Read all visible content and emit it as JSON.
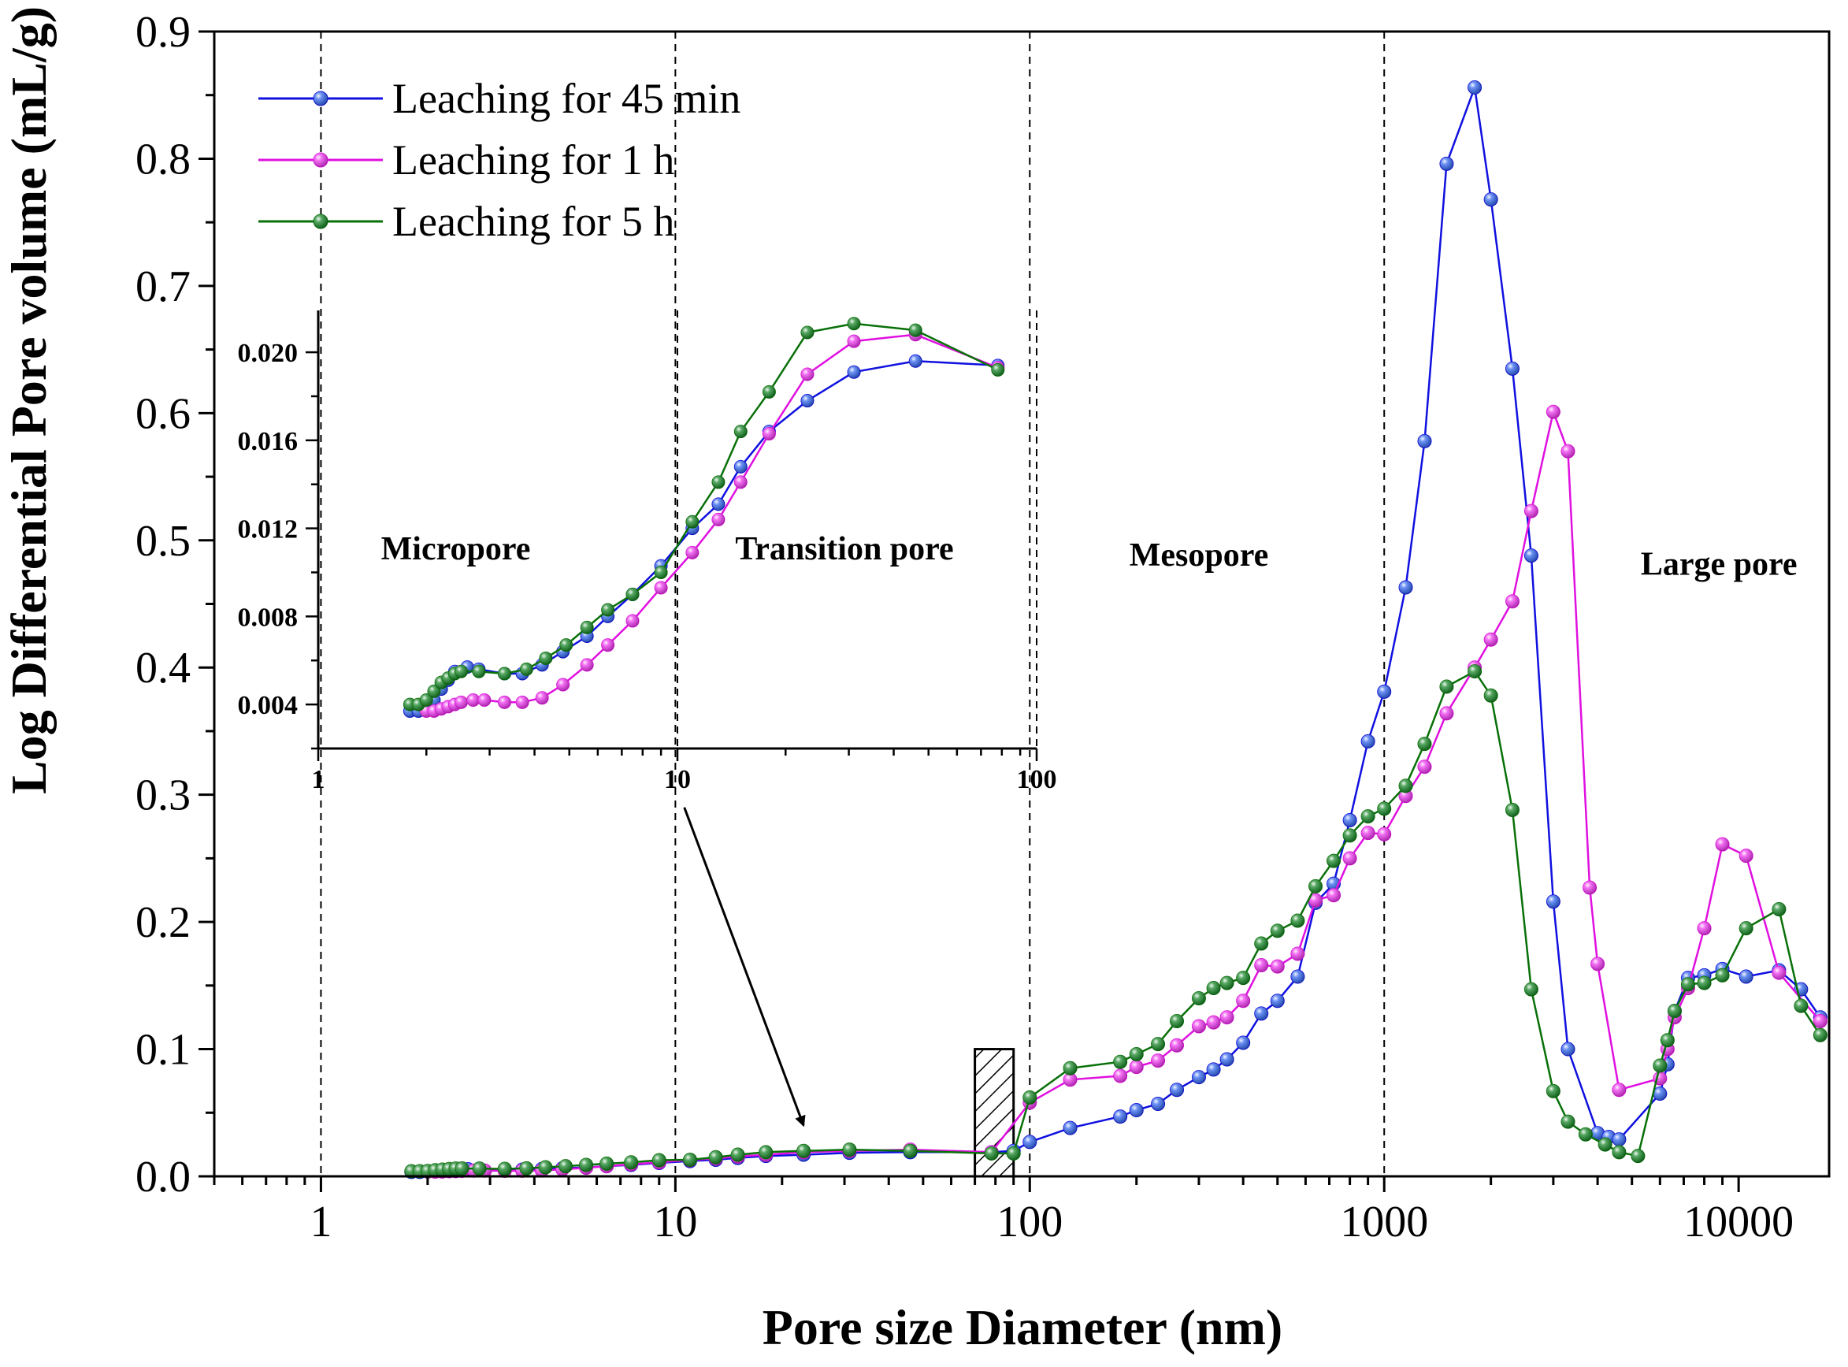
{
  "chart_data": {
    "type": "line",
    "xscale": "log",
    "xlabel": "Pore size Diameter (nm)",
    "ylabel": "Log Differential Pore volume (mL/g)",
    "xlim": [
      0.5,
      18000
    ],
    "ylim": [
      0,
      0.9
    ],
    "x_ticks": [
      {
        "value": 1,
        "label": "1"
      },
      {
        "value": 10,
        "label": "10"
      },
      {
        "value": 100,
        "label": "100"
      },
      {
        "value": 1000,
        "label": "1000"
      },
      {
        "value": 10000,
        "label": "10000"
      }
    ],
    "y_ticks": [
      {
        "value": 0.0,
        "label": "0.0"
      },
      {
        "value": 0.1,
        "label": "0.1"
      },
      {
        "value": 0.2,
        "label": "0.2"
      },
      {
        "value": 0.3,
        "label": "0.3"
      },
      {
        "value": 0.4,
        "label": "0.4"
      },
      {
        "value": 0.5,
        "label": "0.5"
      },
      {
        "value": 0.6,
        "label": "0.6"
      },
      {
        "value": 0.7,
        "label": "0.7"
      },
      {
        "value": 0.8,
        "label": "0.8"
      },
      {
        "value": 0.9,
        "label": "0.9"
      }
    ],
    "boundaries": [
      1,
      10,
      100,
      1000
    ],
    "regions": [
      {
        "label": "Micropore",
        "x": 2.4,
        "y": 0.485
      },
      {
        "label": "Transition pore",
        "x": 30,
        "y": 0.485
      },
      {
        "label": "Mesopore",
        "x": 300,
        "y": 0.48
      },
      {
        "label": "Large pore",
        "x": 8800,
        "y": 0.473
      }
    ],
    "highlight_box": {
      "x_range": [
        70,
        90
      ],
      "y_range": [
        0,
        0.1
      ]
    },
    "arrow": {
      "from": [
        10.6,
        0.29
      ],
      "to": [
        23,
        0.04
      ]
    },
    "legend": {
      "position": "top-left"
    },
    "series": [
      {
        "name": "Leaching for 45 min",
        "color": "#1010e0",
        "fill": "#3a6cf0",
        "x": [
          1.8,
          1.9,
          2.0,
          2.1,
          2.2,
          2.3,
          2.4,
          2.6,
          2.8,
          3.3,
          3.7,
          4.2,
          4.8,
          5.6,
          6.4,
          7.5,
          9.0,
          11,
          13,
          15,
          18,
          23,
          31,
          46,
          78,
          90,
          100,
          130,
          180,
          200,
          230,
          260,
          300,
          330,
          360,
          400,
          450,
          500,
          570,
          640,
          720,
          800,
          900,
          1000,
          1150,
          1300,
          1500,
          1800,
          2000,
          2300,
          2600,
          3000,
          3300,
          4000,
          4300,
          4600,
          6000,
          6300,
          6600,
          7200,
          8000,
          9000,
          10500,
          13000,
          15000,
          17000
        ],
        "y": [
          0.0035,
          0.0035,
          0.0038,
          0.0042,
          0.0047,
          0.0051,
          0.0055,
          0.0056,
          0.0055,
          0.0053,
          0.0053,
          0.0057,
          0.0063,
          0.007,
          0.008,
          0.009,
          0.0105,
          0.012,
          0.013,
          0.0145,
          0.016,
          0.017,
          0.0185,
          0.019,
          0.019,
          0.02,
          0.027,
          0.038,
          0.047,
          0.052,
          0.057,
          0.068,
          0.078,
          0.084,
          0.092,
          0.105,
          0.128,
          0.138,
          0.157,
          0.215,
          0.23,
          0.28,
          0.342,
          0.381,
          0.463,
          0.578,
          0.796,
          0.856,
          0.768,
          0.635,
          0.488,
          0.216,
          0.1,
          0.034,
          0.031,
          0.029,
          0.065,
          0.088,
          0.13,
          0.156,
          0.158,
          0.163,
          0.157,
          0.162,
          0.147,
          0.125
        ]
      },
      {
        "name": "Leaching for 1 h",
        "color": "#e010e0",
        "fill": "#f040f0",
        "x": [
          2.0,
          2.1,
          2.2,
          2.3,
          2.4,
          2.5,
          2.7,
          2.9,
          3.3,
          3.7,
          4.2,
          4.8,
          5.6,
          6.4,
          7.5,
          9.0,
          11,
          13,
          15,
          18,
          23,
          31,
          46,
          78,
          100,
          130,
          180,
          200,
          230,
          260,
          300,
          330,
          360,
          400,
          450,
          500,
          570,
          640,
          720,
          800,
          900,
          1000,
          1150,
          1300,
          1500,
          1800,
          2000,
          2300,
          2600,
          3000,
          3300,
          3800,
          4000,
          4600,
          6000,
          6300,
          6600,
          7200,
          8000,
          9000,
          10500,
          13000,
          17000
        ],
        "y": [
          0.0038,
          0.0037,
          0.0038,
          0.004,
          0.0041,
          0.0043,
          0.0045,
          0.0045,
          0.0043,
          0.0044,
          0.0046,
          0.0055,
          0.0067,
          0.008,
          0.0095,
          0.011,
          0.0128,
          0.014,
          0.0156,
          0.017,
          0.019,
          0.02,
          0.021,
          0.019,
          0.058,
          0.076,
          0.079,
          0.086,
          0.091,
          0.103,
          0.118,
          0.121,
          0.125,
          0.138,
          0.166,
          0.165,
          0.175,
          0.217,
          0.221,
          0.25,
          0.27,
          0.269,
          0.299,
          0.322,
          0.364,
          0.4,
          0.422,
          0.452,
          0.523,
          0.601,
          0.57,
          0.227,
          0.167,
          0.068,
          0.077,
          0.1,
          0.125,
          0.148,
          0.195,
          0.261,
          0.252,
          0.16,
          0.122
        ]
      },
      {
        "name": "Leaching for 5 h",
        "color": "#087008",
        "fill": "#1e8a2e",
        "x": [
          1.8,
          1.9,
          2.0,
          2.1,
          2.2,
          2.3,
          2.4,
          2.5,
          2.8,
          3.3,
          3.8,
          4.3,
          4.9,
          5.6,
          6.4,
          7.5,
          9.0,
          11,
          13,
          15,
          18,
          23,
          31,
          46,
          78,
          90,
          100,
          130,
          180,
          200,
          230,
          260,
          300,
          330,
          360,
          400,
          450,
          500,
          570,
          640,
          720,
          800,
          900,
          1000,
          1150,
          1300,
          1500,
          1800,
          2000,
          2300,
          2600,
          3000,
          3300,
          3700,
          4200,
          4600,
          5200,
          6000,
          6300,
          6600,
          7200,
          8000,
          9000,
          10500,
          13000,
          15000,
          17000
        ],
        "y": [
          0.004,
          0.004,
          0.0042,
          0.0048,
          0.0053,
          0.0057,
          0.0061,
          0.0062,
          0.0061,
          0.0059,
          0.0063,
          0.0071,
          0.008,
          0.009,
          0.01,
          0.011,
          0.0127,
          0.013,
          0.015,
          0.017,
          0.019,
          0.02,
          0.021,
          0.02,
          0.018,
          0.018,
          0.062,
          0.085,
          0.09,
          0.096,
          0.104,
          0.122,
          0.14,
          0.148,
          0.152,
          0.156,
          0.183,
          0.193,
          0.201,
          0.228,
          0.248,
          0.268,
          0.283,
          0.289,
          0.307,
          0.34,
          0.385,
          0.397,
          0.378,
          0.288,
          0.147,
          0.067,
          0.043,
          0.033,
          0.025,
          0.019,
          0.016,
          0.087,
          0.107,
          0.13,
          0.151,
          0.152,
          0.158,
          0.195,
          0.21,
          0.134,
          0.111
        ]
      }
    ],
    "inset": {
      "xscale": "log",
      "xlim": [
        1,
        100
      ],
      "ylim": [
        0.002,
        0.0219
      ],
      "x_ticks": [
        {
          "value": 1,
          "label": "1"
        },
        {
          "value": 10,
          "label": "10"
        },
        {
          "value": 100,
          "label": "100"
        }
      ],
      "y_ticks": [
        {
          "value": 0.004,
          "label": "0.004"
        },
        {
          "value": 0.008,
          "label": "0.008"
        },
        {
          "value": 0.012,
          "label": "0.012"
        },
        {
          "value": 0.016,
          "label": "0.016"
        },
        {
          "value": 0.02,
          "label": "0.020"
        }
      ],
      "boundaries": [
        10,
        100
      ],
      "series": [
        {
          "name": "Leaching for 45 min",
          "x": [
            1.8,
            1.9,
            2.0,
            2.1,
            2.2,
            2.3,
            2.4,
            2.6,
            2.8,
            3.3,
            3.7,
            4.2,
            4.8,
            5.6,
            6.4,
            7.5,
            9.0,
            11,
            13,
            15,
            18,
            23,
            31,
            46,
            78
          ],
          "y": [
            0.0037,
            0.0037,
            0.0039,
            0.0042,
            0.0047,
            0.0051,
            0.0055,
            0.0057,
            0.0056,
            0.0054,
            0.0054,
            0.0058,
            0.0064,
            0.0071,
            0.008,
            0.009,
            0.0103,
            0.012,
            0.0131,
            0.0148,
            0.0164,
            0.0178,
            0.0191,
            0.0196,
            0.0194
          ]
        },
        {
          "name": "Leaching for 1 h",
          "x": [
            2.0,
            2.1,
            2.2,
            2.3,
            2.4,
            2.5,
            2.7,
            2.9,
            3.3,
            3.7,
            4.2,
            4.8,
            5.6,
            6.4,
            7.5,
            9.0,
            11,
            13,
            15,
            18,
            23,
            31,
            46,
            78
          ],
          "y": [
            0.0037,
            0.0037,
            0.0038,
            0.0039,
            0.004,
            0.0041,
            0.0042,
            0.0042,
            0.0041,
            0.0041,
            0.0043,
            0.0049,
            0.0058,
            0.0067,
            0.0078,
            0.0093,
            0.0109,
            0.0124,
            0.0141,
            0.0163,
            0.019,
            0.0205,
            0.0208,
            0.0193
          ]
        },
        {
          "name": "Leaching for 5 h",
          "x": [
            1.8,
            1.9,
            2.0,
            2.1,
            2.2,
            2.3,
            2.4,
            2.5,
            2.8,
            3.3,
            3.8,
            4.3,
            4.9,
            5.6,
            6.4,
            7.5,
            9.0,
            11,
            13,
            15,
            18,
            23,
            31,
            46,
            78
          ],
          "y": [
            0.004,
            0.004,
            0.0042,
            0.0046,
            0.005,
            0.0052,
            0.0054,
            0.0055,
            0.0055,
            0.0054,
            0.0056,
            0.0061,
            0.0067,
            0.0075,
            0.0083,
            0.009,
            0.01,
            0.0123,
            0.0141,
            0.0164,
            0.0182,
            0.0209,
            0.0213,
            0.021,
            0.0192
          ]
        }
      ]
    }
  }
}
